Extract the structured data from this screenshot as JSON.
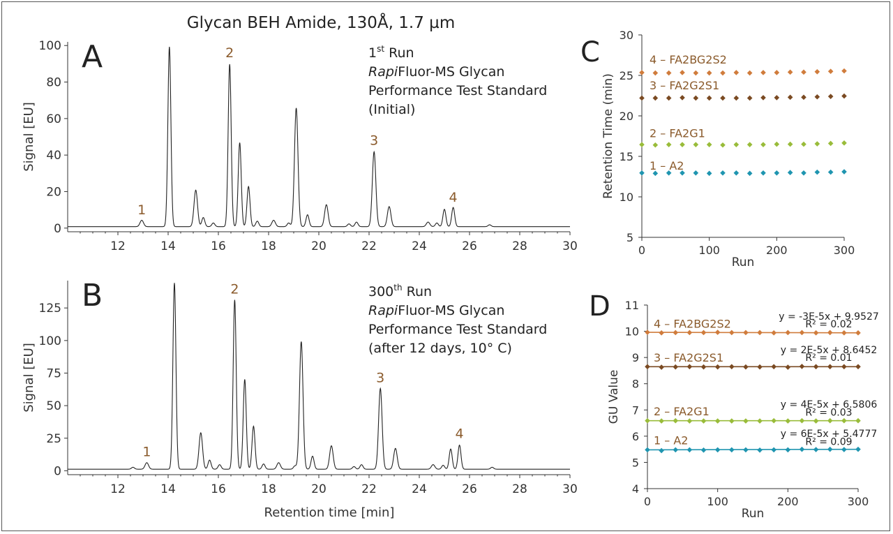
{
  "figure_title": "Glycan BEH Amide, 130Å, 1.7 µm",
  "colors": {
    "trace": "#222222",
    "peak_label": "#8a5a2b",
    "a2": "#1f95b0",
    "fa2g1": "#99bc3a",
    "fa2g2s1": "#7a4a22",
    "fa2bg2s2": "#d07c3c",
    "axis": "#333333"
  },
  "chart_data": [
    {
      "id": "A",
      "type": "line",
      "panel_label": "A",
      "annotation": [
        "1",
        "st",
        " Run",
        "Rapi",
        "Fluor-MS Glycan",
        "Performance Test Standard",
        "(Initial)"
      ],
      "ylabel": "Signal [EU]",
      "xlabel": "",
      "xlim": [
        10,
        30
      ],
      "ylim": [
        -2,
        102
      ],
      "xticks": [
        12,
        14,
        16,
        18,
        20,
        22,
        24,
        26,
        28,
        30
      ],
      "yticks": [
        0,
        20,
        40,
        60,
        80,
        100
      ],
      "baseline": 0.8,
      "peaks": [
        {
          "x": 12.95,
          "y": 3.5,
          "w": 0.07
        },
        {
          "x": 14.05,
          "y": 98.5,
          "w": 0.06
        },
        {
          "x": 15.1,
          "y": 20,
          "w": 0.07
        },
        {
          "x": 15.4,
          "y": 5,
          "w": 0.06
        },
        {
          "x": 15.8,
          "y": 2,
          "w": 0.06
        },
        {
          "x": 16.45,
          "y": 89,
          "w": 0.06
        },
        {
          "x": 16.85,
          "y": 46,
          "w": 0.06
        },
        {
          "x": 17.2,
          "y": 22,
          "w": 0.06
        },
        {
          "x": 17.55,
          "y": 3,
          "w": 0.06
        },
        {
          "x": 18.2,
          "y": 3.5,
          "w": 0.07
        },
        {
          "x": 18.8,
          "y": 2,
          "w": 0.06
        },
        {
          "x": 19.1,
          "y": 65,
          "w": 0.07
        },
        {
          "x": 19.55,
          "y": 6.5,
          "w": 0.06
        },
        {
          "x": 20.3,
          "y": 12,
          "w": 0.07
        },
        {
          "x": 21.2,
          "y": 1.5,
          "w": 0.06
        },
        {
          "x": 21.5,
          "y": 2.5,
          "w": 0.06
        },
        {
          "x": 22.2,
          "y": 41,
          "w": 0.07
        },
        {
          "x": 22.8,
          "y": 11,
          "w": 0.07
        },
        {
          "x": 24.35,
          "y": 2.5,
          "w": 0.07
        },
        {
          "x": 24.7,
          "y": 2,
          "w": 0.06
        },
        {
          "x": 25.0,
          "y": 9.5,
          "w": 0.06
        },
        {
          "x": 25.35,
          "y": 10.5,
          "w": 0.06
        },
        {
          "x": 26.8,
          "y": 1,
          "w": 0.06
        }
      ],
      "peak_labels": [
        {
          "text": "1",
          "x": 12.95,
          "y": 6
        },
        {
          "text": "2",
          "x": 16.45,
          "y": 92
        },
        {
          "text": "3",
          "x": 22.2,
          "y": 44
        },
        {
          "text": "4",
          "x": 25.35,
          "y": 13
        }
      ]
    },
    {
      "id": "B",
      "type": "line",
      "panel_label": "B",
      "annotation": [
        "300",
        "th",
        " Run",
        "Rapi",
        "Fluor-MS Glycan",
        "Performance Test Standard",
        "(after 12 days, 10° C)"
      ],
      "ylabel": "Signal [EU]",
      "xlabel": "Retention time [min]",
      "xlim": [
        10,
        30
      ],
      "ylim": [
        -3,
        146
      ],
      "xticks": [
        12,
        14,
        16,
        18,
        20,
        22,
        24,
        26,
        28,
        30
      ],
      "yticks": [
        0,
        25,
        50,
        75,
        100,
        125
      ],
      "baseline": 1.2,
      "peaks": [
        {
          "x": 12.6,
          "y": 1.5,
          "w": 0.06
        },
        {
          "x": 13.15,
          "y": 5,
          "w": 0.07
        },
        {
          "x": 14.25,
          "y": 143,
          "w": 0.06
        },
        {
          "x": 15.3,
          "y": 28,
          "w": 0.07
        },
        {
          "x": 15.65,
          "y": 7,
          "w": 0.06
        },
        {
          "x": 16.05,
          "y": 3.5,
          "w": 0.06
        },
        {
          "x": 16.65,
          "y": 130,
          "w": 0.06
        },
        {
          "x": 17.05,
          "y": 69,
          "w": 0.06
        },
        {
          "x": 17.4,
          "y": 33,
          "w": 0.06
        },
        {
          "x": 17.8,
          "y": 4,
          "w": 0.06
        },
        {
          "x": 18.4,
          "y": 5,
          "w": 0.07
        },
        {
          "x": 19.05,
          "y": 2.5,
          "w": 0.06
        },
        {
          "x": 19.3,
          "y": 98,
          "w": 0.07
        },
        {
          "x": 19.75,
          "y": 10,
          "w": 0.06
        },
        {
          "x": 20.5,
          "y": 18,
          "w": 0.07
        },
        {
          "x": 21.4,
          "y": 2,
          "w": 0.06
        },
        {
          "x": 21.7,
          "y": 3.5,
          "w": 0.06
        },
        {
          "x": 22.45,
          "y": 62,
          "w": 0.07
        },
        {
          "x": 23.05,
          "y": 16,
          "w": 0.07
        },
        {
          "x": 24.55,
          "y": 3.5,
          "w": 0.07
        },
        {
          "x": 24.95,
          "y": 3,
          "w": 0.06
        },
        {
          "x": 25.25,
          "y": 15.5,
          "w": 0.06
        },
        {
          "x": 25.6,
          "y": 18.5,
          "w": 0.06
        },
        {
          "x": 26.9,
          "y": 1.5,
          "w": 0.06
        }
      ],
      "peak_labels": [
        {
          "text": "1",
          "x": 13.15,
          "y": 9
        },
        {
          "text": "2",
          "x": 16.65,
          "y": 134
        },
        {
          "text": "3",
          "x": 22.45,
          "y": 66
        },
        {
          "text": "4",
          "x": 25.6,
          "y": 23
        }
      ]
    },
    {
      "id": "C",
      "type": "scatter",
      "panel_label": "C",
      "xlabel": "Run",
      "ylabel": "Retention Time (min)",
      "xlim": [
        0,
        300
      ],
      "ylim": [
        5,
        30
      ],
      "xticks": [
        0,
        100,
        200,
        300
      ],
      "yticks": [
        5,
        10,
        15,
        20,
        25,
        30
      ],
      "x": [
        0,
        20,
        40,
        60,
        80,
        100,
        120,
        140,
        160,
        180,
        200,
        220,
        240,
        260,
        280,
        300
      ],
      "series": [
        {
          "name": "1 – A2",
          "color": "#1f95b0",
          "label_y": 13.9,
          "values": [
            12.95,
            12.9,
            12.95,
            12.95,
            12.95,
            12.9,
            12.95,
            12.95,
            12.9,
            12.95,
            12.95,
            13.0,
            12.95,
            13.05,
            13.05,
            13.1
          ]
        },
        {
          "name": "2 – FA2G1",
          "color": "#99bc3a",
          "label_y": 17.9,
          "values": [
            16.45,
            16.4,
            16.45,
            16.45,
            16.45,
            16.45,
            16.4,
            16.45,
            16.45,
            16.45,
            16.5,
            16.5,
            16.5,
            16.55,
            16.6,
            16.65
          ]
        },
        {
          "name": "3 – FA2G2S1",
          "color": "#7a4a22",
          "label_y": 23.8,
          "values": [
            22.2,
            22.2,
            22.2,
            22.25,
            22.2,
            22.2,
            22.2,
            22.2,
            22.2,
            22.25,
            22.25,
            22.3,
            22.3,
            22.35,
            22.4,
            22.45
          ]
        },
        {
          "name": "4 – FA2BG2S2",
          "color": "#d07c3c",
          "label_y": 27.0,
          "values": [
            25.35,
            25.3,
            25.3,
            25.35,
            25.3,
            25.3,
            25.3,
            25.35,
            25.3,
            25.35,
            25.35,
            25.4,
            25.4,
            25.45,
            25.5,
            25.55
          ]
        }
      ]
    },
    {
      "id": "D",
      "type": "scatter",
      "panel_label": "D",
      "xlabel": "Run",
      "ylabel": "GU Value",
      "xlim": [
        0,
        300
      ],
      "ylim": [
        4,
        11
      ],
      "xticks": [
        0,
        100,
        200,
        300
      ],
      "yticks": [
        4,
        5,
        6,
        7,
        8,
        9,
        10,
        11
      ],
      "x": [
        0,
        20,
        40,
        60,
        80,
        100,
        120,
        140,
        160,
        180,
        200,
        220,
        240,
        260,
        280,
        300
      ],
      "series": [
        {
          "name": "1 – A2",
          "color": "#1f95b0",
          "label_y": 5.85,
          "equation": "y = 6E-5x + 5.4777",
          "r2": "R² = 0.09",
          "eq_y": 6.1,
          "r2_y": 5.8,
          "values": [
            5.48,
            5.45,
            5.48,
            5.48,
            5.47,
            5.48,
            5.48,
            5.48,
            5.47,
            5.48,
            5.48,
            5.5,
            5.49,
            5.5,
            5.49,
            5.5
          ]
        },
        {
          "name": "2 – FA2G1",
          "color": "#99bc3a",
          "label_y": 6.95,
          "equation": "y = 4E-5x + 6.5806",
          "r2": "R² = 0.03",
          "eq_y": 7.22,
          "r2_y": 6.92,
          "values": [
            6.59,
            6.58,
            6.59,
            6.58,
            6.58,
            6.58,
            6.58,
            6.58,
            6.58,
            6.59,
            6.58,
            6.59,
            6.58,
            6.59,
            6.59,
            6.59
          ]
        },
        {
          "name": "3 – FA2G2S1",
          "color": "#7a4a22",
          "label_y": 9.0,
          "equation": "y = 2E-5x + 8.6452",
          "r2": "R² = 0.01",
          "eq_y": 9.3,
          "r2_y": 9.0,
          "values": [
            8.65,
            8.63,
            8.64,
            8.65,
            8.64,
            8.64,
            8.65,
            8.64,
            8.64,
            8.65,
            8.63,
            8.66,
            8.65,
            8.65,
            8.65,
            8.65
          ]
        },
        {
          "name": "4 – FA2BG2S2",
          "color": "#d07c3c",
          "label_y": 10.3,
          "equation": "y = -3E-5x + 9.9527",
          "r2": "R² = 0.02",
          "eq_y": 10.58,
          "r2_y": 10.28,
          "values": [
            9.96,
            9.94,
            9.95,
            9.95,
            9.95,
            9.96,
            9.95,
            9.95,
            9.95,
            9.94,
            9.95,
            9.95,
            9.94,
            9.95,
            9.94,
            9.94
          ]
        }
      ]
    }
  ]
}
